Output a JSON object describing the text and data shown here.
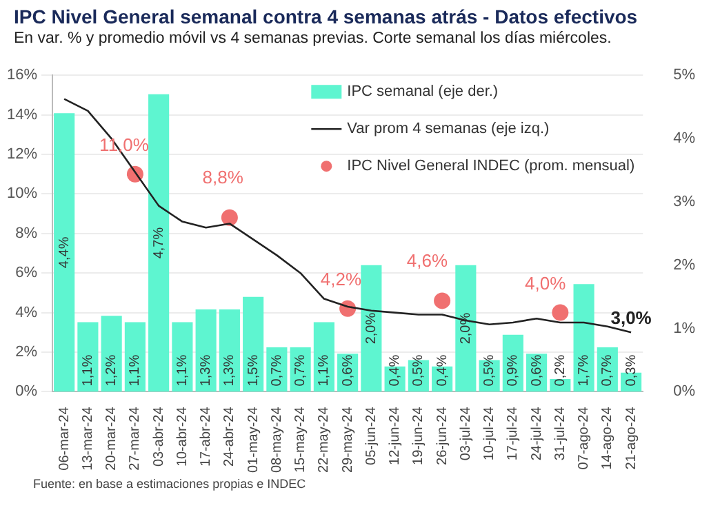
{
  "chart_data": {
    "type": "bar",
    "title": "IPC Nivel General semanal contra 4 semanas atrás - Datos efectivos",
    "subtitle": "En var. % y promedio móvil vs 4 semanas previas. Corte semanal los días miércoles.",
    "annotations": [
      "Fuente: en base a estimaciones propias e INDEC"
    ],
    "categories": [
      "06-mar-24",
      "13-mar-24",
      "20-mar-24",
      "27-mar-24",
      "03-abr-24",
      "10-abr-24",
      "17-abr-24",
      "24-abr-24",
      "01-may-24",
      "08-may-24",
      "15-may-24",
      "22-may-24",
      "29-may-24",
      "05-jun-24",
      "12-jun-24",
      "19-jun-24",
      "26-jun-24",
      "03-jul-24",
      "10-jul-24",
      "17-jul-24",
      "24-jul-24",
      "31-jul-24",
      "07-ago-24",
      "14-ago-24",
      "21-ago-24"
    ],
    "series": [
      {
        "name": "IPC semanal (eje der.)",
        "axis": "y2",
        "color": "#5ef5d0",
        "values": [
          4.4,
          1.1,
          1.2,
          1.1,
          4.7,
          1.1,
          1.3,
          1.3,
          1.5,
          0.7,
          0.7,
          1.1,
          0.6,
          2.0,
          0.4,
          0.5,
          0.4,
          2.0,
          0.5,
          0.9,
          0.6,
          0.2,
          1.7,
          0.7,
          0.3
        ],
        "value_labels": [
          "4,4%",
          "1,1%",
          "1,2%",
          "1,1%",
          "4,7%",
          "1,1%",
          "1,3%",
          "1,3%",
          "1,5%",
          "0,7%",
          "0,7%",
          "1,1%",
          "0,6%",
          "2,0%",
          "0,4%",
          "0,5%",
          "0,4%",
          "2,0%",
          "0,5%",
          "0,9%",
          "0,6%",
          "0,2%",
          "1,7%",
          "0,7%",
          "0,3%"
        ]
      },
      {
        "name": "Var prom 4 semanas (eje izq.)",
        "type": "line",
        "color": "#222222",
        "marker": "none",
        "values": [
          14.8,
          14.2,
          12.8,
          11.1,
          9.4,
          8.6,
          8.3,
          8.5,
          7.7,
          6.9,
          6.0,
          4.7,
          4.3,
          4.1,
          4.0,
          3.9,
          3.9,
          3.6,
          3.4,
          3.5,
          3.7,
          3.5,
          3.5,
          3.3,
          3.0
        ],
        "value_labels": [
          null,
          null,
          null,
          null,
          null,
          null,
          null,
          null,
          null,
          null,
          null,
          null,
          null,
          null,
          null,
          null,
          null,
          null,
          null,
          null,
          null,
          null,
          null,
          null,
          "3,0%"
        ]
      },
      {
        "name": "IPC Nivel General INDEC (prom. mensual)",
        "type": "scatter",
        "color": "#f07070",
        "marker": "circle",
        "values": [
          null,
          null,
          null,
          11.0,
          null,
          null,
          null,
          8.8,
          null,
          null,
          null,
          null,
          4.2,
          null,
          null,
          null,
          4.6,
          null,
          null,
          null,
          null,
          4.0,
          null,
          null,
          null
        ],
        "value_labels": [
          null,
          null,
          null,
          "11,0%",
          null,
          null,
          null,
          "8,8%",
          null,
          null,
          null,
          null,
          "4,2%",
          null,
          null,
          null,
          "4,6%",
          null,
          null,
          null,
          null,
          "4,0%",
          null,
          null,
          null
        ]
      }
    ],
    "ylim": [
      0,
      16
    ],
    "yticks": [
      {
        "value": 0,
        "label": "0%"
      },
      {
        "value": 2,
        "label": "2%"
      },
      {
        "value": 4,
        "label": "4%"
      },
      {
        "value": 6,
        "label": "6%"
      },
      {
        "value": 8,
        "label": "8%"
      },
      {
        "value": 10,
        "label": "10%"
      },
      {
        "value": 12,
        "label": "12%"
      },
      {
        "value": 14,
        "label": "14%"
      },
      {
        "value": 16,
        "label": "16%"
      }
    ],
    "y2lim": [
      0,
      5
    ],
    "y2ticks": [
      {
        "value": 0,
        "label": "0%"
      },
      {
        "value": 1,
        "label": "1%"
      },
      {
        "value": 2,
        "label": "2%"
      },
      {
        "value": 3,
        "label": "3%"
      },
      {
        "value": 4,
        "label": "4%"
      },
      {
        "value": 5,
        "label": "5%"
      }
    ],
    "grid": "y",
    "legend": "top right"
  }
}
